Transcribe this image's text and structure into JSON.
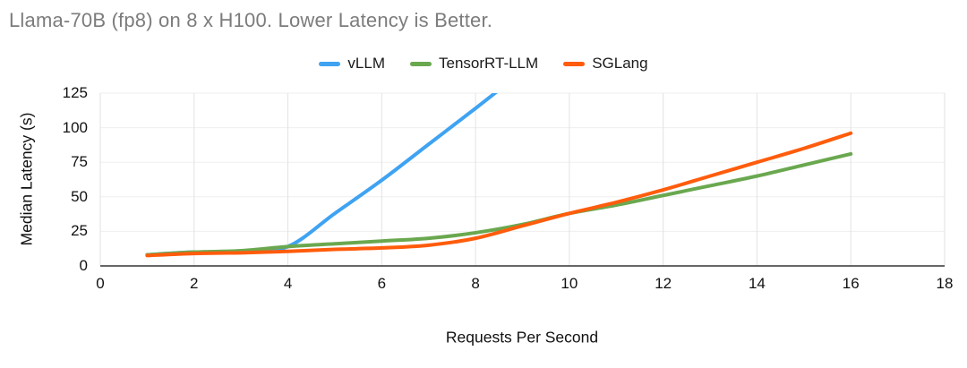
{
  "colors": {
    "title_text": "#7c7c7c",
    "axis_text": "#111111",
    "gridline_vertical": "#e2e2e2",
    "gridline_horizontal": "#efefef",
    "baseline": "#333333",
    "background": "#ffffff"
  },
  "chart_data": {
    "type": "line",
    "title": "Llama-70B (fp8) on 8 x H100. Lower Latency is Better.",
    "xlabel": "Requests Per Second",
    "ylabel": "Median Latency (s)",
    "xlim": [
      0,
      18
    ],
    "ylim": [
      0,
      125
    ],
    "xticks": [
      0,
      2,
      4,
      6,
      8,
      10,
      12,
      14,
      16,
      18
    ],
    "yticks": [
      0,
      25,
      50,
      75,
      100,
      125
    ],
    "grid": "vertical-prominent",
    "legend_position": "top-center",
    "series": [
      {
        "name": "vLLM",
        "color": "#3fa3f2",
        "x": [
          1,
          2,
          3,
          4,
          5,
          6,
          7,
          8,
          8.6
        ],
        "y": [
          8,
          10,
          10,
          14,
          38,
          62,
          88,
          114,
          130
        ]
      },
      {
        "name": "TensorRT-LLM",
        "color": "#6aa84f",
        "x": [
          1,
          2,
          3,
          4,
          5,
          6,
          7,
          8,
          9,
          10,
          11,
          12,
          13,
          14,
          15,
          16
        ],
        "y": [
          8,
          10,
          11,
          14,
          16,
          18,
          20,
          24,
          30,
          38,
          44,
          51,
          58,
          65,
          73,
          81
        ]
      },
      {
        "name": "SGLang",
        "color": "#ff5c0c",
        "x": [
          1,
          2,
          3,
          4,
          5,
          6,
          7,
          8,
          9,
          10,
          11,
          12,
          13,
          14,
          15,
          16
        ],
        "y": [
          7.5,
          9,
          9.5,
          10.5,
          12,
          13,
          15,
          20,
          29,
          38,
          46,
          55,
          65,
          75,
          85,
          96
        ]
      }
    ]
  }
}
